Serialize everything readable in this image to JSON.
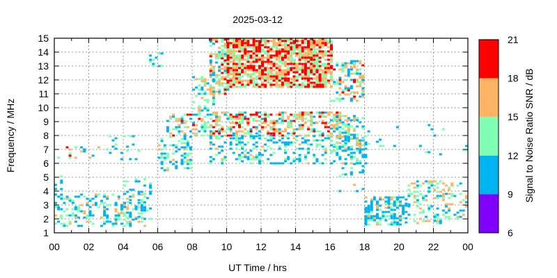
{
  "chart_data": {
    "type": "heatmap",
    "title": "2025-03-12",
    "xlabel": "UT Time / hrs",
    "ylabel": "Frequency / MHz",
    "xlim": [
      0,
      24
    ],
    "ylim": [
      1,
      15
    ],
    "x_ticks": [
      "00",
      "02",
      "04",
      "06",
      "08",
      "10",
      "12",
      "14",
      "16",
      "18",
      "20",
      "22",
      "00"
    ],
    "y_ticks": [
      "1",
      "2",
      "3",
      "4",
      "5",
      "6",
      "7",
      "8",
      "9",
      "10",
      "11",
      "12",
      "13",
      "14",
      "15"
    ],
    "grid": true,
    "colorbar": {
      "label": "Signal to Noise Ratio SNR / dB",
      "range": [
        6,
        21
      ],
      "ticks": [
        "6",
        "9",
        "12",
        "15",
        "18",
        "21"
      ],
      "bins": [
        {
          "min": 6,
          "max": 9,
          "color": "#7f00ff"
        },
        {
          "min": 9,
          "max": 12,
          "color": "#00b4f0"
        },
        {
          "min": 12,
          "max": 15,
          "color": "#80ffb4"
        },
        {
          "min": 15,
          "max": 18,
          "color": "#ffb464"
        },
        {
          "min": 18,
          "max": 21,
          "color": "#ff0000"
        }
      ]
    },
    "regions": [
      [
        0.0,
        5.2,
        1.5,
        3.8,
        0.35,
        12
      ],
      [
        0.0,
        0.5,
        4.0,
        5.1,
        0.3,
        10
      ],
      [
        0.0,
        3.0,
        6.4,
        7.3,
        0.1,
        15
      ],
      [
        3.0,
        5.0,
        6.3,
        8.0,
        0.12,
        11
      ],
      [
        4.0,
        5.6,
        2.0,
        5.0,
        0.2,
        11
      ],
      [
        5.5,
        6.2,
        13.0,
        14.0,
        0.15,
        10
      ],
      [
        6.0,
        8.0,
        5.5,
        8.0,
        0.35,
        11
      ],
      [
        6.5,
        9.0,
        8.0,
        9.6,
        0.35,
        14
      ],
      [
        8.0,
        9.2,
        9.5,
        12.3,
        0.35,
        13
      ],
      [
        9.0,
        16.5,
        8.0,
        9.8,
        0.55,
        15
      ],
      [
        9.0,
        18.0,
        6.0,
        8.0,
        0.3,
        11
      ],
      [
        9.0,
        10.0,
        11.0,
        15.0,
        0.6,
        15
      ],
      [
        10.0,
        16.0,
        11.5,
        15.0,
        0.8,
        17
      ],
      [
        16.0,
        18.0,
        10.5,
        13.5,
        0.35,
        14
      ],
      [
        16.0,
        18.0,
        7.0,
        9.5,
        0.4,
        13
      ],
      [
        16.5,
        18.0,
        4.0,
        6.0,
        0.12,
        11
      ],
      [
        18.0,
        20.5,
        1.6,
        3.6,
        0.55,
        12
      ],
      [
        20.5,
        24.0,
        1.7,
        4.8,
        0.3,
        13
      ],
      [
        18.0,
        24.0,
        6.5,
        9.0,
        0.03,
        10
      ]
    ]
  }
}
